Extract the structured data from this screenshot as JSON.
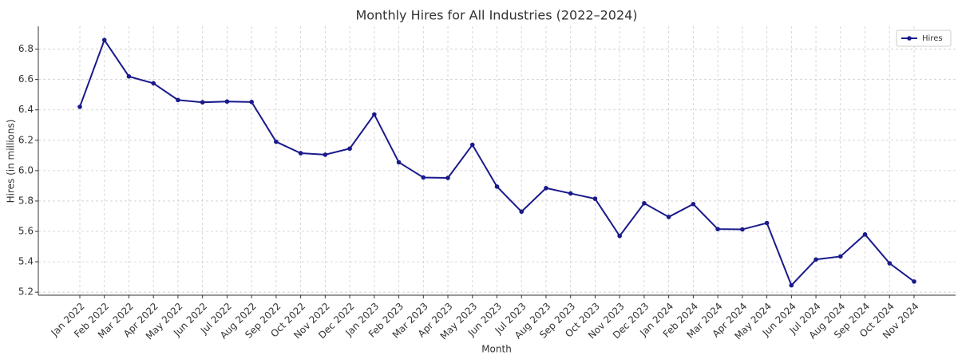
{
  "chart_data": {
    "type": "line",
    "title": "Monthly Hires for All Industries (2022–2024)",
    "x_label": "Month",
    "y_label": "Hires (in millions)",
    "categories": [
      "Jan 2022",
      "Feb 2022",
      "Mar 2022",
      "Apr 2022",
      "May 2022",
      "Jun 2022",
      "Jul 2022",
      "Aug 2022",
      "Sep 2022",
      "Oct 2022",
      "Nov 2022",
      "Dec 2022",
      "Jan 2023",
      "Feb 2023",
      "Mar 2023",
      "Apr 2023",
      "May 2023",
      "Jun 2023",
      "Jul 2023",
      "Aug 2023",
      "Sep 2023",
      "Oct 2023",
      "Nov 2023",
      "Dec 2023",
      "Jan 2024",
      "Feb 2024",
      "Mar 2024",
      "Apr 2024",
      "May 2024",
      "Jun 2024",
      "Jul 2024",
      "Aug 2024",
      "Sep 2024",
      "Oct 2024",
      "Nov 2024"
    ],
    "series": [
      {
        "name": "Hires",
        "color": "#1a1a8c",
        "values": [
          6.42,
          6.86,
          6.62,
          6.575,
          6.465,
          6.45,
          6.455,
          6.452,
          6.19,
          6.115,
          6.105,
          6.145,
          6.37,
          6.055,
          5.955,
          5.952,
          6.17,
          5.895,
          5.73,
          5.885,
          5.85,
          5.815,
          5.57,
          5.785,
          5.695,
          5.78,
          5.615,
          5.613,
          5.655,
          5.245,
          5.415,
          5.435,
          5.58,
          5.39,
          5.27
        ]
      }
    ],
    "ylim": [
      5.18,
      6.95
    ],
    "yticks": [
      5.2,
      5.4,
      5.6,
      5.8,
      {
        "value": 6,
        "label": "6.0"
      },
      6.2,
      6.4,
      6.6,
      6.8
    ],
    "grid": true,
    "legend": "upper right"
  }
}
